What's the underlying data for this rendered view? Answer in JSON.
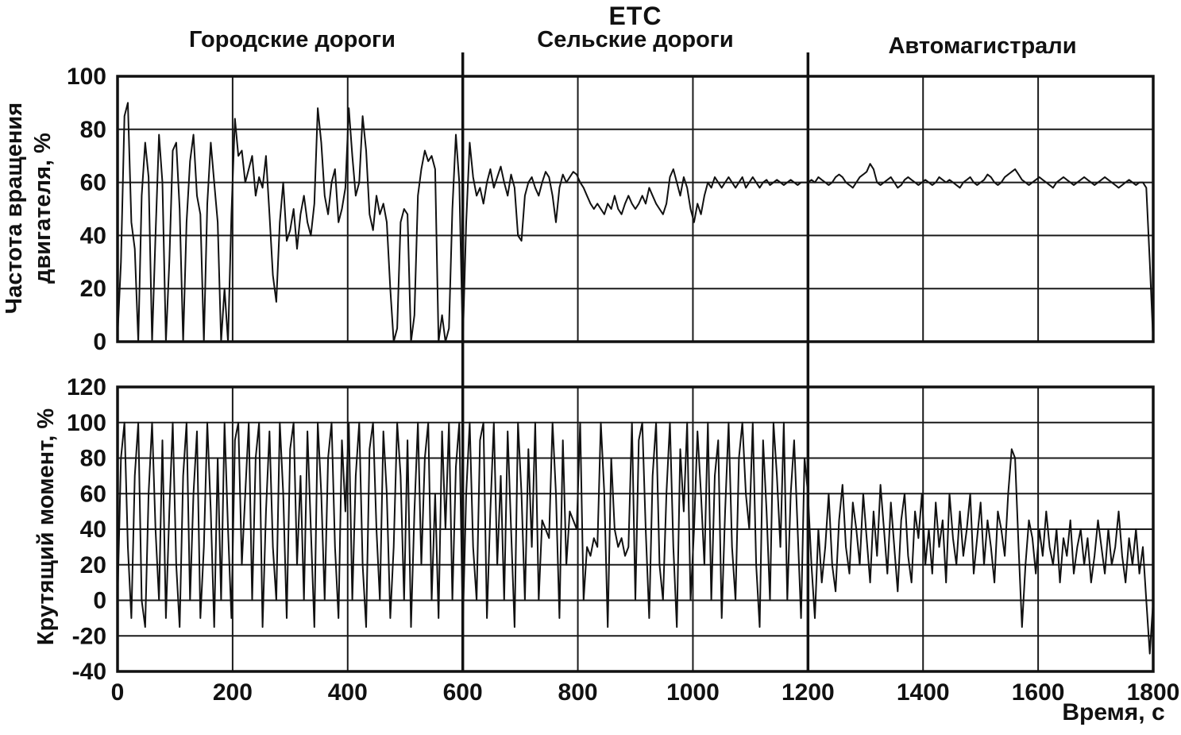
{
  "figure": {
    "title": "ETC",
    "xlabel": "Время, с",
    "top_ylabel": "Частота вращения\nдвигателя, %",
    "bottom_ylabel": "Крутящий момент, %",
    "phase_boundaries": [
      600,
      1200
    ],
    "phases": [
      {
        "label": "Городские дороги",
        "start": 0,
        "end": 600
      },
      {
        "label": "Сельские дороги",
        "start": 600,
        "end": 1200
      },
      {
        "label": "Автомагистрали",
        "start": 1200,
        "end": 1800
      }
    ]
  },
  "chart_data": [
    {
      "type": "line",
      "name": "engine-speed",
      "title": "ETC",
      "ylabel": "Частота вращения двигателя, %",
      "xlabel": "Время, с",
      "xlim": [
        0,
        1800
      ],
      "ylim": [
        0,
        100
      ],
      "xticks": [
        0,
        200,
        400,
        600,
        800,
        1000,
        1200,
        1400,
        1600,
        1800
      ],
      "yticks": [
        0,
        20,
        40,
        60,
        80,
        100
      ],
      "grid": true,
      "legend": "none",
      "x_start": 0,
      "x_step": 6,
      "values": [
        2,
        30,
        85,
        90,
        45,
        35,
        0,
        55,
        75,
        62,
        0,
        40,
        78,
        60,
        0,
        30,
        72,
        75,
        50,
        0,
        45,
        68,
        78,
        55,
        48,
        0,
        52,
        75,
        60,
        45,
        0,
        20,
        0,
        48,
        84,
        70,
        72,
        60,
        65,
        70,
        55,
        62,
        58,
        70,
        48,
        25,
        15,
        45,
        60,
        38,
        42,
        50,
        35,
        48,
        55,
        45,
        40,
        52,
        88,
        75,
        55,
        48,
        60,
        65,
        45,
        50,
        58,
        88,
        70,
        55,
        60,
        85,
        72,
        48,
        42,
        55,
        48,
        52,
        45,
        20,
        0,
        5,
        45,
        50,
        48,
        0,
        10,
        55,
        65,
        72,
        68,
        70,
        65,
        0,
        10,
        0,
        5,
        50,
        78,
        60,
        0,
        45,
        75,
        62,
        55,
        58,
        52,
        60,
        65,
        58,
        62,
        66,
        60,
        55,
        63,
        58,
        40,
        38,
        55,
        60,
        62,
        58,
        55,
        60,
        64,
        62,
        55,
        45,
        58,
        63,
        60,
        62,
        64,
        63,
        60,
        58,
        55,
        52,
        50,
        52,
        50,
        48,
        52,
        50,
        55,
        50,
        48,
        52,
        55,
        52,
        50,
        52,
        55,
        52,
        58,
        55,
        52,
        50,
        48,
        52,
        62,
        65,
        60,
        55,
        62,
        58,
        50,
        45,
        52,
        48,
        55,
        60,
        58,
        62,
        60,
        58,
        60,
        62,
        60,
        58,
        60,
        62,
        58,
        60,
        62,
        60,
        58,
        60,
        61,
        59,
        60,
        61,
        60,
        59,
        60,
        61,
        60,
        59,
        60,
        60,
        60,
        61,
        60,
        62,
        61,
        60,
        59,
        60,
        62,
        63,
        62,
        60,
        59,
        58,
        60,
        62,
        63,
        64,
        67,
        65,
        60,
        59,
        60,
        61,
        62,
        60,
        58,
        59,
        61,
        62,
        61,
        60,
        59,
        60,
        61,
        60,
        59,
        60,
        62,
        61,
        60,
        61,
        60,
        59,
        58,
        60,
        61,
        62,
        60,
        59,
        60,
        61,
        63,
        62,
        60,
        59,
        60,
        62,
        63,
        64,
        65,
        63,
        61,
        60,
        59,
        60,
        61,
        62,
        61,
        60,
        59,
        58,
        60,
        61,
        62,
        61,
        60,
        59,
        60,
        61,
        62,
        61,
        60,
        59,
        60,
        61,
        62,
        61,
        60,
        59,
        58,
        59,
        60,
        61,
        60,
        59,
        60,
        60,
        58,
        30,
        0
      ]
    },
    {
      "type": "line",
      "name": "torque",
      "title": "ETC",
      "ylabel": "Крутящий момент, %",
      "xlabel": "Время, с",
      "xlim": [
        0,
        1800
      ],
      "ylim": [
        -40,
        120
      ],
      "xticks": [
        0,
        200,
        400,
        600,
        800,
        1000,
        1200,
        1400,
        1600,
        1800
      ],
      "yticks": [
        -40,
        -20,
        0,
        20,
        40,
        60,
        80,
        100,
        120
      ],
      "grid": true,
      "legend": "none",
      "x_start": 0,
      "x_step": 6,
      "values": [
        0,
        80,
        100,
        30,
        -10,
        70,
        100,
        0,
        -15,
        60,
        100,
        40,
        0,
        90,
        -10,
        50,
        100,
        20,
        -15,
        70,
        100,
        0,
        60,
        95,
        -10,
        30,
        100,
        50,
        -15,
        80,
        0,
        100,
        40,
        -10,
        90,
        100,
        20,
        60,
        100,
        0,
        80,
        100,
        -15,
        50,
        95,
        30,
        0,
        100,
        60,
        -10,
        85,
        100,
        20,
        70,
        0,
        95,
        40,
        -15,
        100,
        60,
        0,
        80,
        100,
        30,
        -10,
        90,
        50,
        100,
        0,
        70,
        100,
        20,
        -15,
        85,
        100,
        40,
        0,
        95,
        60,
        -10,
        30,
        100,
        70,
        0,
        90,
        -15,
        50,
        100,
        20,
        80,
        100,
        0,
        60,
        -10,
        95,
        40,
        100,
        0,
        75,
        100,
        -15,
        60,
        100,
        30,
        0,
        90,
        100,
        -10,
        50,
        100,
        20,
        70,
        0,
        95,
        40,
        -15,
        100,
        60,
        0,
        85,
        30,
        100,
        0,
        45,
        40,
        35,
        100,
        60,
        -10,
        90,
        20,
        50,
        45,
        40,
        100,
        0,
        30,
        25,
        35,
        30,
        100,
        60,
        -15,
        80,
        40,
        30,
        35,
        25,
        30,
        100,
        0,
        90,
        100,
        40,
        -10,
        70,
        100,
        20,
        0,
        60,
        100,
        30,
        -15,
        85,
        50,
        100,
        0,
        40,
        95,
        60,
        20,
        100,
        0,
        70,
        90,
        -10,
        50,
        100,
        30,
        0,
        80,
        100,
        60,
        40,
        100,
        20,
        -15,
        90,
        50,
        0,
        100,
        70,
        30,
        100,
        0,
        60,
        90,
        40,
        -10,
        80,
        60,
        20,
        -10,
        40,
        10,
        30,
        60,
        20,
        5,
        45,
        65,
        30,
        15,
        55,
        40,
        20,
        60,
        35,
        10,
        50,
        25,
        65,
        40,
        15,
        55,
        30,
        5,
        45,
        60,
        25,
        10,
        50,
        35,
        60,
        20,
        40,
        15,
        55,
        30,
        45,
        10,
        60,
        35,
        20,
        50,
        25,
        40,
        60,
        15,
        35,
        55,
        20,
        45,
        30,
        10,
        50,
        40,
        25,
        60,
        85,
        80,
        30,
        -15,
        20,
        45,
        35,
        15,
        40,
        25,
        50,
        30,
        20,
        40,
        10,
        35,
        25,
        45,
        15,
        30,
        40,
        20,
        35,
        10,
        25,
        45,
        30,
        15,
        40,
        20,
        30,
        50,
        25,
        10,
        35,
        20,
        40,
        15,
        30,
        0,
        -30,
        0
      ]
    }
  ]
}
